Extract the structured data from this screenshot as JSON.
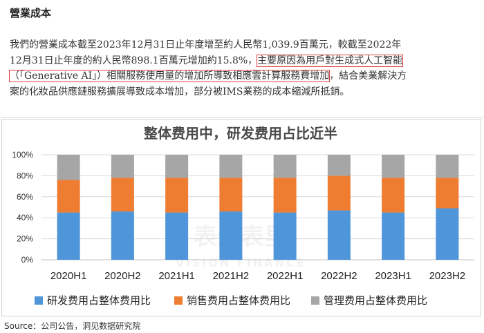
{
  "doc": {
    "title": "營業成本",
    "lines": [
      [
        {
          "t": "我們的營業成本截至2023年12月31日止年度增至約人民幣1,039.9百萬元，較截至2022年"
        }
      ],
      [
        {
          "t": "12月31日止年度的約人民幣898.1百萬元增加約15.8%，"
        },
        {
          "t": "主要原因為用戶對生成式人工智能",
          "hl": true
        }
      ],
      [
        {
          "t": "（「Generative AI」）相關服務使用量的增加所導致相應雲計算服務費增加",
          "hl": true
        },
        {
          "t": "，結合美業解決方"
        }
      ],
      [
        {
          "t": "案的化妝品供應鏈服務擴展導致成本增加，部分被IMS業務的成本縮減所抵銷。"
        }
      ]
    ]
  },
  "watermark": {
    "cn": "表外表里",
    "en": "VISION FINANCE"
  },
  "source": "Source：公司公告，洞见数据研究院",
  "colors": {
    "rd": "#4e95d9",
    "sales": "#ef7d31",
    "admin": "#a6a6a6",
    "title": "#4a4a4a",
    "grid": "#d9d9d9"
  },
  "chart_data": {
    "type": "bar",
    "stacked": true,
    "percent": true,
    "title": "整体费用中，研发费用占比近半",
    "categories": [
      "2020H1",
      "2020H2",
      "2021H1",
      "2021H2",
      "2022H1",
      "2022H2",
      "2023H1",
      "2023H2"
    ],
    "ylim": [
      0,
      100
    ],
    "yticks": [
      "0%",
      "20%",
      "40%",
      "60%",
      "80%",
      "100%"
    ],
    "grid": true,
    "legend": "bottom",
    "series": [
      {
        "name": "研发费用占整体费用比",
        "values": [
          45,
          46,
          45,
          46,
          45,
          47,
          45,
          49
        ]
      },
      {
        "name": "销售费用占整体费用比",
        "values": [
          31,
          32,
          33,
          32,
          33,
          33,
          33,
          29
        ]
      },
      {
        "name": "管理费用占整体费用比",
        "values": [
          24,
          22,
          22,
          22,
          22,
          20,
          22,
          22
        ]
      }
    ]
  }
}
